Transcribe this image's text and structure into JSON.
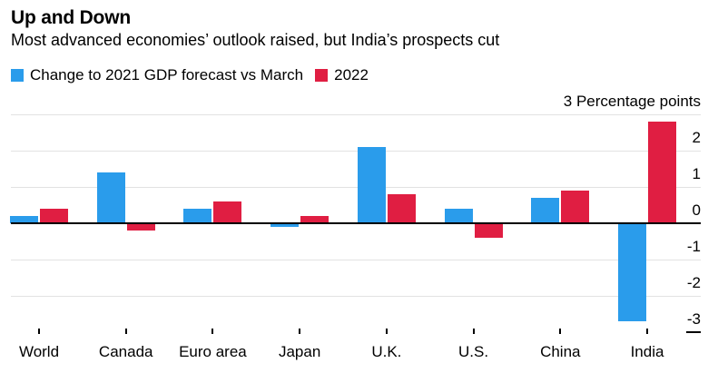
{
  "title": "Up and Down",
  "subtitle": "Most advanced economies’ outlook raised, but India’s prospects cut",
  "legend": {
    "items": [
      {
        "label": "Change to 2021 GDP forecast vs March",
        "color": "#2a9ceb"
      },
      {
        "label": "2022",
        "color": "#e01e42"
      }
    ]
  },
  "colors": {
    "series_blue": "#2a9ceb",
    "series_red": "#e01e42",
    "gridline": "#e2e2e2",
    "axis_line": "#000000",
    "text": "#000000",
    "background": "#ffffff"
  },
  "chart_data": {
    "type": "bar",
    "title": "Up and Down",
    "subtitle": "Most advanced economies’ outlook raised, but India’s prospects cut",
    "categories": [
      "World",
      "Canada",
      "Euro area",
      "Japan",
      "U.K.",
      "U.S.",
      "China",
      "India"
    ],
    "series": [
      {
        "name": "Change to 2021 GDP forecast vs March",
        "color": "#2a9ceb",
        "values": [
          0.2,
          1.4,
          0.4,
          -0.1,
          2.1,
          0.4,
          0.7,
          -2.7
        ]
      },
      {
        "name": "2022",
        "color": "#e01e42",
        "values": [
          0.4,
          -0.2,
          0.6,
          0.2,
          0.8,
          -0.4,
          0.9,
          2.8
        ]
      }
    ],
    "xlabel": "",
    "ylabel": "Percentage points",
    "ylim": [
      -3,
      3
    ],
    "grid": "horizontal",
    "legend_position": "top-left",
    "yticks": [
      {
        "value": 3,
        "label": "3 Percentage points",
        "line": "grid"
      },
      {
        "value": 2,
        "label": "2",
        "line": "grid"
      },
      {
        "value": 1,
        "label": "1",
        "line": "grid"
      },
      {
        "value": 0,
        "label": "0",
        "line": "zero"
      },
      {
        "value": -1,
        "label": "-1",
        "line": "grid"
      },
      {
        "value": -2,
        "label": "-2",
        "line": "grid"
      },
      {
        "value": -3,
        "label": "-3",
        "line": "dash"
      }
    ]
  }
}
